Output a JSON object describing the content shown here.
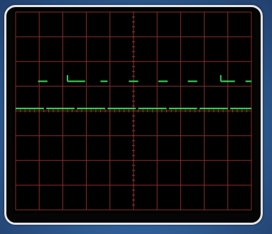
{
  "oscilloscope": {
    "grid": {
      "divisions_x": 10,
      "divisions_y": 8,
      "minor_ticks_per_division": 5,
      "grid_color": "#8a2e2a"
    },
    "trace_color": "#36c956",
    "traces": [
      {
        "channel": "upper",
        "level_div": 5.2,
        "segments_div": [
          [
            0.95,
            1.35
          ],
          [
            2.55,
            2.95
          ],
          [
            3.6,
            3.9
          ],
          [
            4.8,
            5.2
          ],
          [
            6.05,
            6.45
          ],
          [
            7.3,
            7.7
          ],
          [
            8.85,
            9.3
          ],
          [
            9.75,
            10.0
          ]
        ],
        "markers_div": [
          2.2,
          8.7
        ],
        "marker_height_div": 0.25
      },
      {
        "channel": "lower",
        "level_div": 4.1,
        "segments_div": [
          [
            0.0,
            1.2
          ],
          [
            1.3,
            2.5
          ],
          [
            2.6,
            3.8
          ],
          [
            3.9,
            5.1
          ],
          [
            5.2,
            6.4
          ],
          [
            6.5,
            7.7
          ],
          [
            7.8,
            9.0
          ],
          [
            9.1,
            10.0
          ]
        ]
      }
    ]
  }
}
